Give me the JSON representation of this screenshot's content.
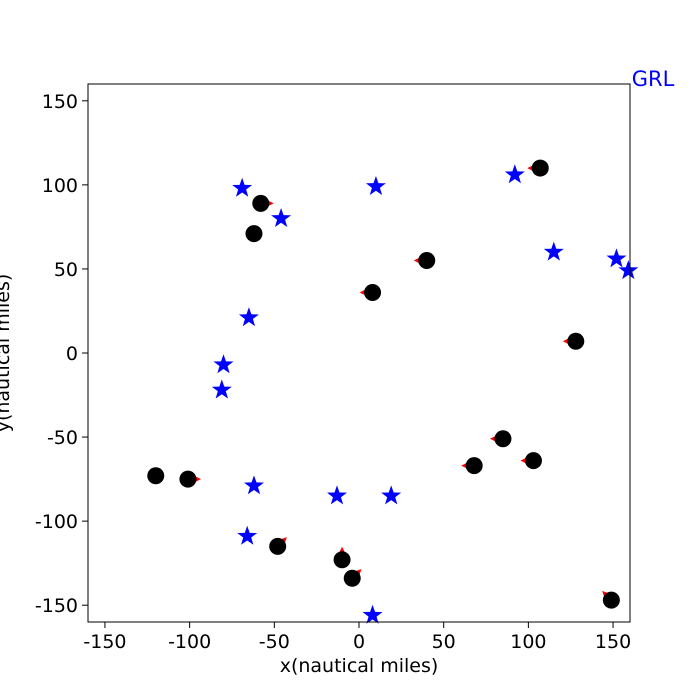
{
  "chart_data": {
    "type": "scatter",
    "title": "",
    "xlabel": "x(nautical miles)",
    "ylabel": "y(nautical miles)",
    "corner_label": "GRL",
    "xlim": [
      -160,
      160
    ],
    "ylim": [
      -160,
      160
    ],
    "xticks": [
      -150,
      -100,
      -50,
      0,
      50,
      100,
      150
    ],
    "yticks": [
      -150,
      -100,
      -50,
      0,
      50,
      100,
      150
    ],
    "grid": false,
    "colors": {
      "star": "#0000ff",
      "circle": "#000000",
      "arrow": "#ff0000",
      "corner_label": "#0000ff"
    },
    "stars": [
      {
        "x": -69,
        "y": 98
      },
      {
        "x": 10,
        "y": 99
      },
      {
        "x": -46,
        "y": 80
      },
      {
        "x": 92,
        "y": 106
      },
      {
        "x": 115,
        "y": 60
      },
      {
        "x": 152,
        "y": 56
      },
      {
        "x": 159,
        "y": 49
      },
      {
        "x": -65,
        "y": 21
      },
      {
        "x": -80,
        "y": -7
      },
      {
        "x": -81,
        "y": -22
      },
      {
        "x": -62,
        "y": -79
      },
      {
        "x": -66,
        "y": -109
      },
      {
        "x": -13,
        "y": -85
      },
      {
        "x": 19,
        "y": -85
      },
      {
        "x": 8,
        "y": -156
      }
    ],
    "circles": [
      {
        "x": 107,
        "y": 110,
        "arrow_dx": -1,
        "arrow_dy": 0
      },
      {
        "x": -58,
        "y": 89,
        "arrow_dx": 1,
        "arrow_dy": 0
      },
      {
        "x": -62,
        "y": 71,
        "arrow_dx": 0,
        "arrow_dy": 0
      },
      {
        "x": 40,
        "y": 55,
        "arrow_dx": -1,
        "arrow_dy": 0
      },
      {
        "x": 8,
        "y": 36,
        "arrow_dx": -1,
        "arrow_dy": 0
      },
      {
        "x": 128,
        "y": 7,
        "arrow_dx": -1,
        "arrow_dy": 0
      },
      {
        "x": 85,
        "y": -51,
        "arrow_dx": -1,
        "arrow_dy": 0
      },
      {
        "x": 68,
        "y": -67,
        "arrow_dx": -1,
        "arrow_dy": 0
      },
      {
        "x": 103,
        "y": -64,
        "arrow_dx": -1,
        "arrow_dy": 0
      },
      {
        "x": -120,
        "y": -73,
        "arrow_dx": 0,
        "arrow_dy": 0
      },
      {
        "x": -101,
        "y": -75,
        "arrow_dx": 1,
        "arrow_dy": 0
      },
      {
        "x": -48,
        "y": -115,
        "arrow_dx": 1,
        "arrow_dy": 1
      },
      {
        "x": -10,
        "y": -123,
        "arrow_dx": 0,
        "arrow_dy": 1
      },
      {
        "x": -4,
        "y": -134,
        "arrow_dx": 1,
        "arrow_dy": 1
      },
      {
        "x": 149,
        "y": -147,
        "arrow_dx": -1,
        "arrow_dy": 1
      }
    ]
  }
}
